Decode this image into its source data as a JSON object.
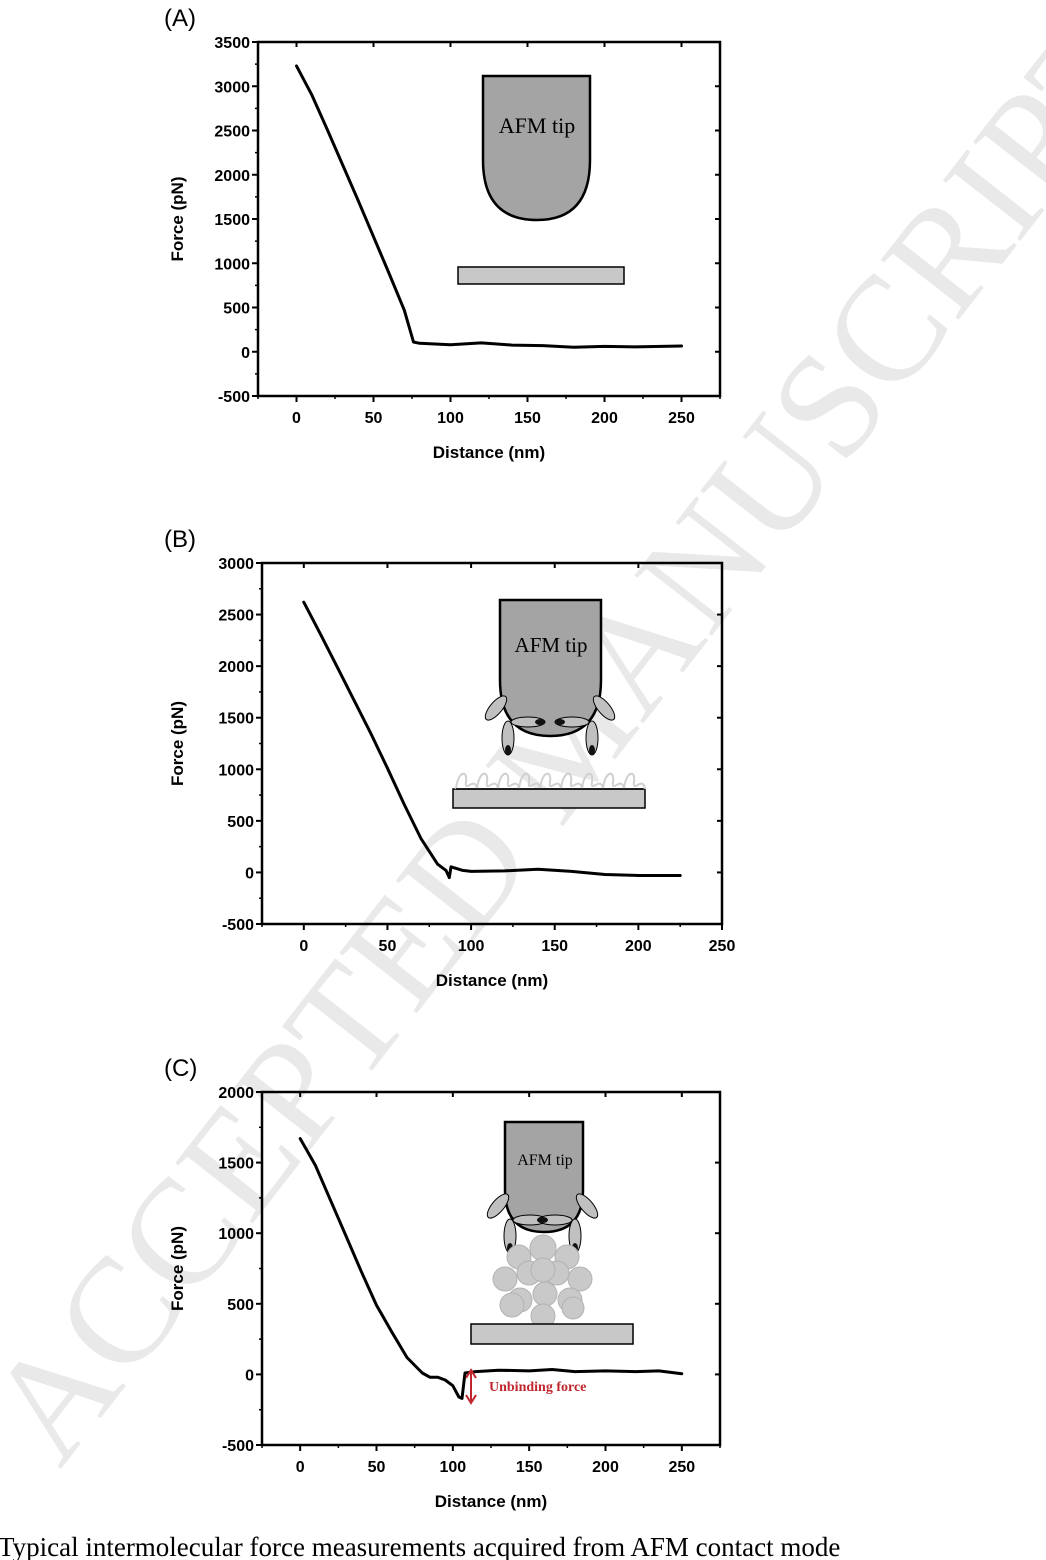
{
  "watermark": "ACCEPTED MANUSCRIPT",
  "caption": "Typical intermolecular force measurements acquired from AFM contact mode",
  "inset": {
    "tip_label": "AFM tip",
    "unbinding_label": "Unbinding force",
    "colors": {
      "tip": "#a4a4a4",
      "surface": "#c8c8c8",
      "unbinding_arrow": "#c0262d"
    }
  },
  "chart_data": [
    {
      "type": "line",
      "panel_label": "(A)",
      "xlabel": "Distance (nm)",
      "ylabel": "Force (pN)",
      "xlim": [
        -25,
        275
      ],
      "ylim": [
        -500,
        3500
      ],
      "xticks": [
        0,
        50,
        100,
        150,
        200,
        250
      ],
      "yticks": [
        -500,
        0,
        500,
        1000,
        1500,
        2000,
        2500,
        3000,
        3500
      ],
      "series": [
        {
          "x": [
            0,
            10,
            20,
            30,
            40,
            50,
            60,
            70,
            76,
            80,
            100,
            120,
            140,
            160,
            180,
            200,
            220,
            250
          ],
          "y": [
            3230,
            2900,
            2510,
            2110,
            1710,
            1300,
            890,
            470,
            110,
            95,
            80,
            100,
            75,
            70,
            50,
            60,
            55,
            65
          ]
        }
      ]
    },
    {
      "type": "line",
      "panel_label": "(B)",
      "xlabel": "Distance (nm)",
      "ylabel": "Force (pN)",
      "xlim": [
        -25,
        250
      ],
      "ylim": [
        -500,
        3000
      ],
      "xticks": [
        0,
        50,
        100,
        150,
        200,
        250
      ],
      "yticks": [
        -500,
        0,
        500,
        1000,
        1500,
        2000,
        2500,
        3000
      ],
      "series": [
        {
          "x": [
            0,
            10,
            20,
            30,
            40,
            50,
            60,
            70,
            80,
            85,
            87,
            88,
            95,
            100,
            120,
            140,
            160,
            180,
            200,
            225
          ],
          "y": [
            2620,
            2310,
            1990,
            1670,
            1350,
            1010,
            660,
            330,
            80,
            20,
            -50,
            55,
            20,
            10,
            15,
            30,
            10,
            -20,
            -30,
            -30
          ]
        }
      ]
    },
    {
      "type": "line",
      "panel_label": "(C)",
      "xlabel": "Distance (nm)",
      "ylabel": "Force (pN)",
      "xlim": [
        -25,
        275
      ],
      "ylim": [
        -500,
        2000
      ],
      "xticks": [
        0,
        50,
        100,
        150,
        200,
        250
      ],
      "yticks": [
        -500,
        0,
        500,
        1000,
        1500,
        2000
      ],
      "series": [
        {
          "x": [
            0,
            10,
            20,
            30,
            40,
            50,
            60,
            70,
            80,
            85,
            90,
            95,
            100,
            104,
            106,
            108,
            115,
            130,
            150,
            165,
            180,
            200,
            220,
            235,
            250
          ],
          "y": [
            1670,
            1480,
            1230,
            980,
            730,
            490,
            300,
            120,
            10,
            -20,
            -20,
            -40,
            -80,
            -160,
            -170,
            10,
            20,
            30,
            25,
            35,
            20,
            25,
            20,
            25,
            5
          ]
        }
      ]
    }
  ]
}
